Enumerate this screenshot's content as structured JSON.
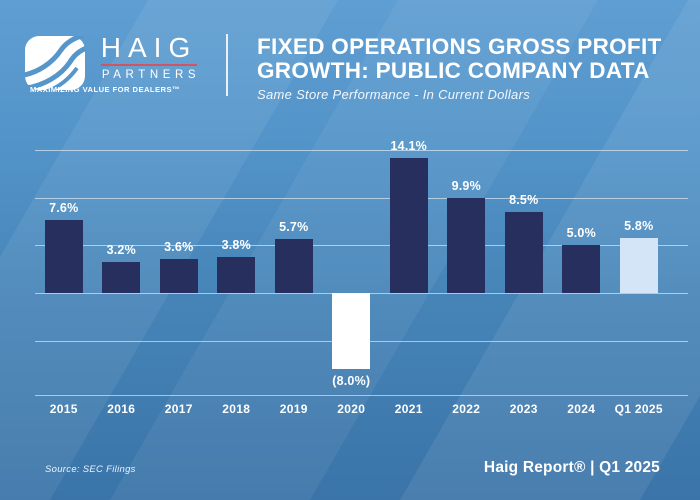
{
  "header": {
    "logo": {
      "name": "HAIG",
      "sub": "PARTNERS",
      "tagline": "MAXIMIZING VALUE FOR DEALERS™"
    },
    "title_line1": "FIXED OPERATIONS GROSS PROFIT",
    "title_line2": "GROWTH: PUBLIC COMPANY DATA",
    "subtitle": "Same Store Performance - In Current Dollars"
  },
  "chart_data": {
    "type": "bar",
    "categories": [
      "2015",
      "2016",
      "2017",
      "2018",
      "2019",
      "2020",
      "2021",
      "2022",
      "2023",
      "2024",
      "Q1 2025"
    ],
    "values": [
      7.6,
      3.2,
      3.6,
      3.8,
      5.7,
      -8.0,
      14.1,
      9.9,
      8.5,
      5.0,
      5.8
    ],
    "labels": [
      "7.6%",
      "3.2%",
      "3.6%",
      "3.8%",
      "5.7%",
      "(8.0%)",
      "14.1%",
      "9.9%",
      "8.5%",
      "5.0%",
      "5.8%"
    ],
    "title": "FIXED OPERATIONS GROSS PROFIT GROWTH: PUBLIC COMPANY DATA",
    "subtitle": "Same Store Performance - In Current Dollars",
    "xlabel": "",
    "ylabel": "",
    "ylim": [
      -10.8,
      16
    ],
    "gridlines_pct": [
      15,
      10,
      5,
      0,
      -5
    ],
    "grid": true,
    "legend": "none",
    "bar_color_default": "#272f5f",
    "bar_color_negative": "#ffffff",
    "bar_color_highlight": "#d5e5f8",
    "highlight_index": 10
  },
  "footer": {
    "source": "Source: SEC Filings",
    "report": "Haig Report® | Q1 2025"
  },
  "colors": {
    "background_top": "#5f9ed2",
    "background_bottom": "#3a74a8",
    "logo_rule_red": "#cf5560",
    "text_white": "#ffffff"
  }
}
